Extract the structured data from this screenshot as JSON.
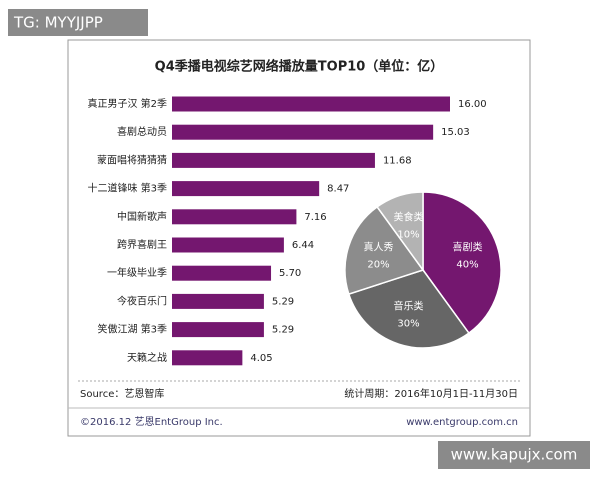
{
  "watermark": "TG: MYYJJPP",
  "chart_data": [
    {
      "type": "bar",
      "title": "Q4季播电视综艺网络播放量TOP10（单位：亿）",
      "categories": [
        "真正男子汉 第2季",
        "喜剧总动员",
        "蒙面唱将猜猜猜",
        "十二道锋味 第3季",
        "中国新歌声",
        "跨界喜剧王",
        "一年级毕业季",
        "今夜百乐门",
        "笑傲江湖 第3季",
        "天籁之战"
      ],
      "values": [
        16.0,
        15.03,
        11.68,
        8.47,
        7.16,
        6.44,
        5.7,
        5.29,
        5.29,
        4.05
      ],
      "value_labels": [
        "16.00",
        "15.03",
        "11.68",
        "8.47",
        "7.16",
        "6.44",
        "5.70",
        "5.29",
        "5.29",
        "4.05"
      ],
      "color": "#74176f"
    },
    {
      "type": "pie",
      "categories": [
        "喜剧类",
        "音乐类",
        "真人秀",
        "美食类"
      ],
      "values": [
        40,
        30,
        20,
        10
      ],
      "value_labels": [
        "40%",
        "30%",
        "20%",
        "10%"
      ],
      "colors": [
        "#74176f",
        "#666666",
        "#8c8c8c",
        "#b3b3b3"
      ]
    }
  ],
  "footer": {
    "source": "Source：艺恩智库",
    "period": "统计周期：2016年10月1日-11月30日",
    "copyright": "©2016.12 艺恩EntGroup Inc.",
    "website": "www.entgroup.com.cn"
  },
  "site_stamp": "www.kapujx.com"
}
